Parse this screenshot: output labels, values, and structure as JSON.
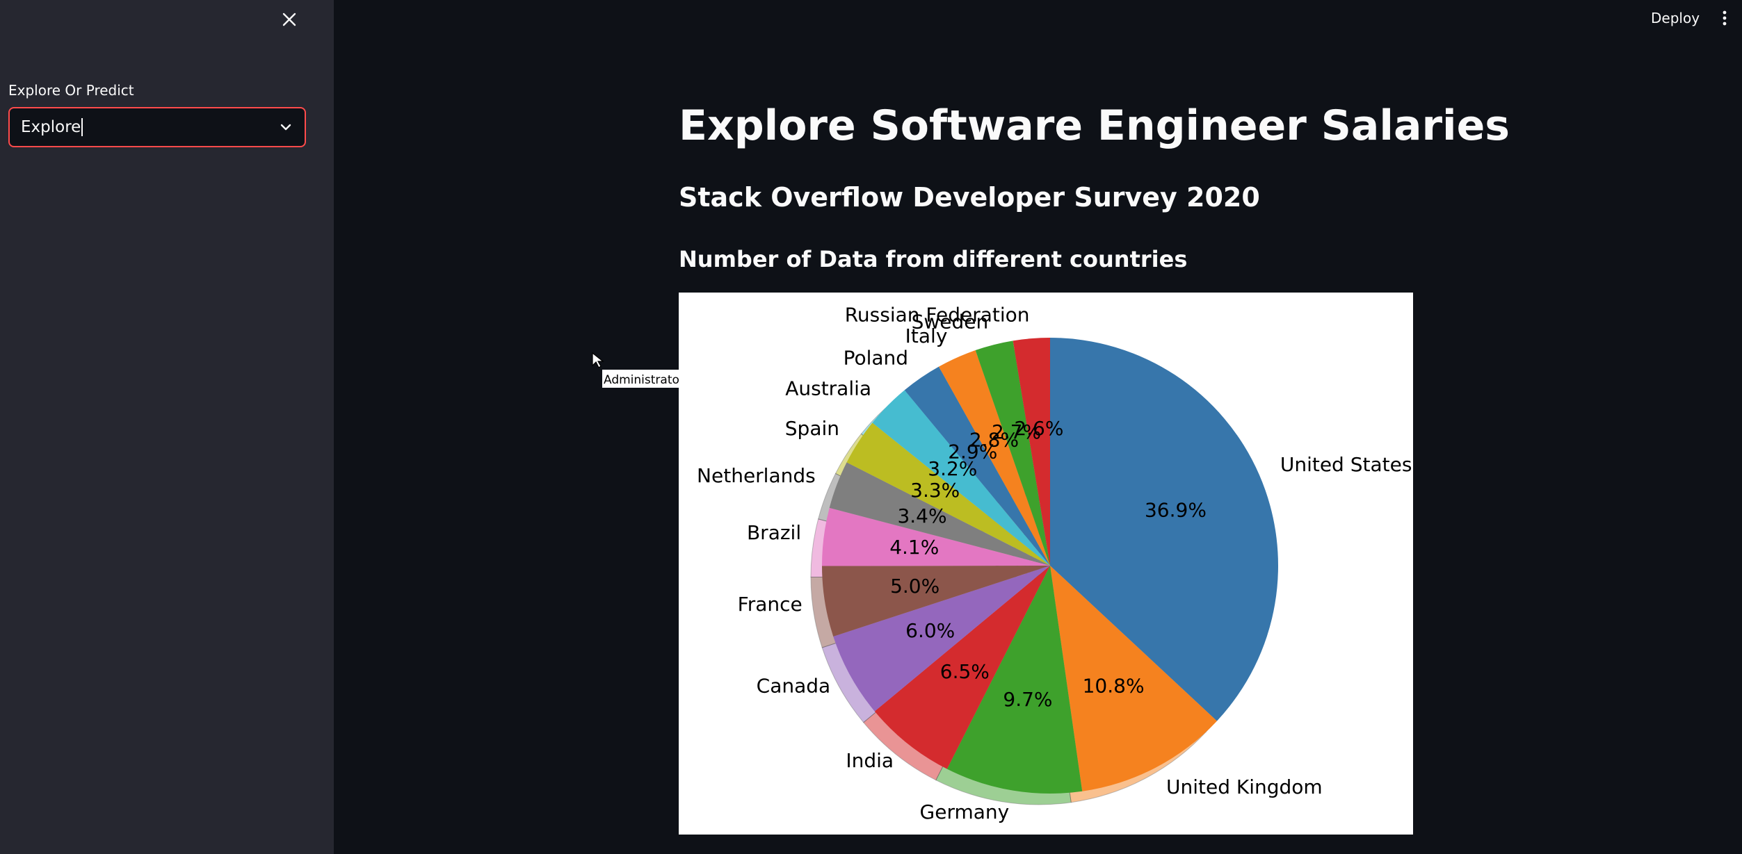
{
  "sidebar": {
    "select_label": "Explore Or Predict",
    "select_value": "Explore"
  },
  "header": {
    "deploy_label": "Deploy"
  },
  "main": {
    "title": "Explore Software Engineer Salaries",
    "subtitle": "Stack Overflow Developer Survey 2020",
    "chart_heading": "Number of Data from different countries"
  },
  "tooltip": {
    "text": "Administrator"
  },
  "chart_data": {
    "type": "pie",
    "title": "",
    "start_angle_deg": 90,
    "shadow": true,
    "categories": [
      "United States",
      "United Kingdom",
      "Germany",
      "India",
      "Canada",
      "France",
      "Brazil",
      "Netherlands",
      "Spain",
      "Australia",
      "Poland",
      "Italy",
      "Sweden",
      "Russian Federation"
    ],
    "labels": [
      "36.9%",
      "10.8%",
      "9.7%",
      "6.5%",
      "6.0%",
      "5.0%",
      "4.1%",
      "3.4%",
      "3.3%",
      "3.2%",
      "2.9%",
      "2.8%",
      "2.7%",
      "2.6%"
    ],
    "values": [
      36.9,
      10.8,
      9.7,
      6.5,
      6.0,
      5.0,
      4.1,
      3.4,
      3.3,
      3.2,
      2.9,
      2.8,
      2.7,
      2.6
    ],
    "colors": [
      "#3776ab",
      "#f5821f",
      "#3ea12c",
      "#d42b2e",
      "#9467bd",
      "#8c564b",
      "#e377c2",
      "#7f7f7f",
      "#bcbd22",
      "#46bcd0",
      "#3776ab",
      "#f5821f",
      "#3ea12c",
      "#d42b2e"
    ]
  }
}
